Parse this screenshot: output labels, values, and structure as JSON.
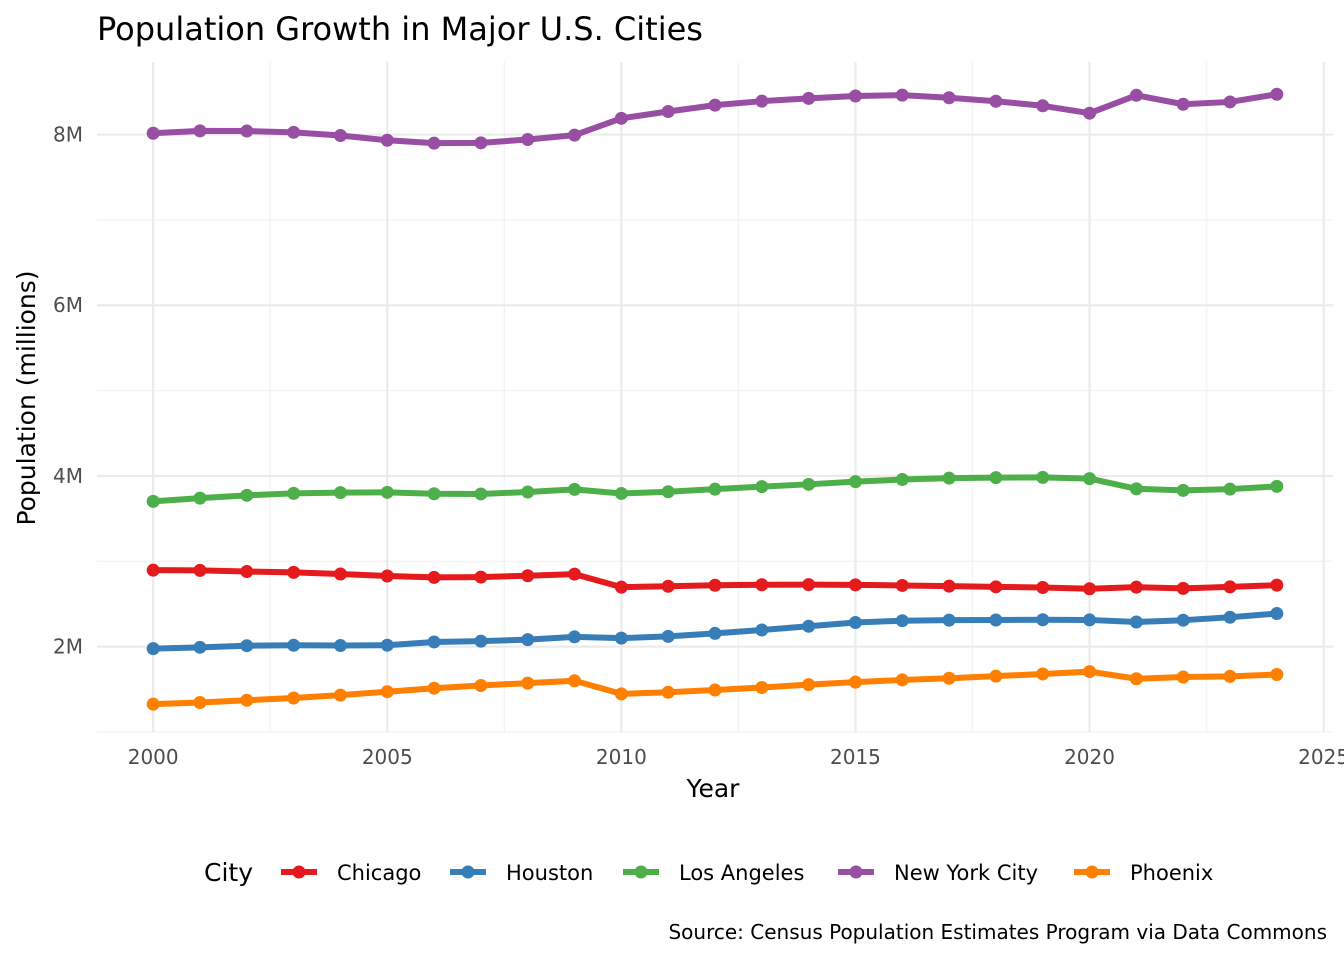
{
  "chart_data": {
    "type": "line",
    "title": "Population Growth in Major U.S. Cities",
    "xlabel": "Year",
    "ylabel": "Population (millions)",
    "caption": "Source: Census Population Estimates Program via Data Commons",
    "xlim": [
      1998.8,
      2025.2
    ],
    "ylim": [
      1000000,
      8850000
    ],
    "x_ticks": [
      {
        "value": 2000,
        "label": "2000"
      },
      {
        "value": 2005,
        "label": "2005"
      },
      {
        "value": 2010,
        "label": "2010"
      },
      {
        "value": 2015,
        "label": "2015"
      },
      {
        "value": 2020,
        "label": "2020"
      },
      {
        "value": 2025,
        "label": "2025"
      }
    ],
    "y_ticks": [
      {
        "value": 2000000,
        "label": "2M"
      },
      {
        "value": 4000000,
        "label": "4M"
      },
      {
        "value": 6000000,
        "label": "6M"
      },
      {
        "value": 8000000,
        "label": "8M"
      }
    ],
    "grid": true,
    "legend": {
      "title": "City",
      "position": "bottom"
    },
    "x": [
      2000,
      2001,
      2002,
      2003,
      2004,
      2005,
      2006,
      2007,
      2008,
      2009,
      2010,
      2011,
      2012,
      2013,
      2014,
      2015,
      2016,
      2017,
      2018,
      2019,
      2020,
      2021,
      2022,
      2023,
      2024
    ],
    "series": [
      {
        "name": "Chicago",
        "color": "#e41a1c",
        "values": [
          2896000,
          2894000,
          2880000,
          2870000,
          2851000,
          2828000,
          2811000,
          2815000,
          2831000,
          2850000,
          2697000,
          2708000,
          2719000,
          2725000,
          2727000,
          2724000,
          2717000,
          2709000,
          2701000,
          2693000,
          2678000,
          2697000,
          2683000,
          2700000,
          2721000
        ]
      },
      {
        "name": "Houston",
        "color": "#377eb8",
        "values": [
          1977000,
          1992000,
          2011000,
          2016000,
          2013000,
          2017000,
          2055000,
          2065000,
          2082000,
          2115000,
          2100000,
          2120000,
          2155000,
          2195000,
          2239000,
          2283000,
          2304000,
          2311000,
          2312000,
          2315000,
          2313000,
          2289000,
          2310000,
          2344000,
          2388000
        ]
      },
      {
        "name": "Los Angeles",
        "color": "#4daf4a",
        "values": [
          3702000,
          3740000,
          3773000,
          3796000,
          3805000,
          3808000,
          3791000,
          3789000,
          3812000,
          3843000,
          3795000,
          3815000,
          3845000,
          3875000,
          3902000,
          3933000,
          3958000,
          3974000,
          3980000,
          3983000,
          3969000,
          3849000,
          3831000,
          3846000,
          3878000
        ]
      },
      {
        "name": "New York City",
        "color": "#984ea3",
        "values": [
          8015000,
          8043000,
          8041000,
          8026000,
          7989000,
          7933000,
          7899000,
          7903000,
          7942000,
          7993000,
          8190000,
          8270000,
          8345000,
          8391000,
          8424000,
          8452000,
          8462000,
          8431000,
          8390000,
          8337000,
          8250000,
          8460000,
          8355000,
          8382000,
          8472000
        ]
      },
      {
        "name": "Phoenix",
        "color": "#ff7f00",
        "values": [
          1326000,
          1346000,
          1372000,
          1398000,
          1432000,
          1472000,
          1513000,
          1545000,
          1573000,
          1600000,
          1447000,
          1466000,
          1492000,
          1521000,
          1555000,
          1584000,
          1610000,
          1630000,
          1654000,
          1680000,
          1708000,
          1624000,
          1644000,
          1652000,
          1674000
        ]
      }
    ]
  }
}
